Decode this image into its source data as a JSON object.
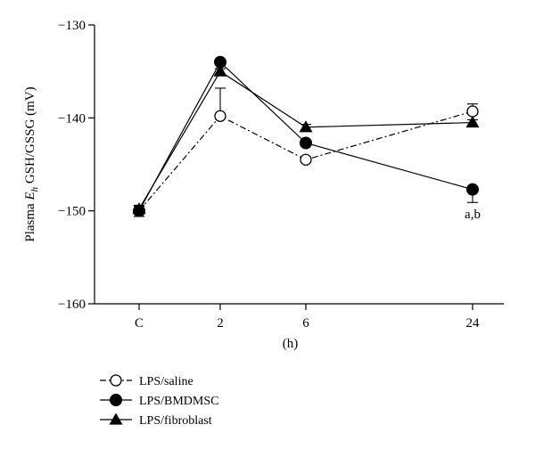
{
  "chart_data": {
    "type": "line",
    "categories": [
      "C",
      "2",
      "6",
      "24"
    ],
    "xlabel": "(h)",
    "ylabel": {
      "prefix": "Plasma ",
      "italic": "E",
      "sub": "h",
      "suffix": " GSH/GSSG (mV)"
    },
    "ylim": [
      -160,
      -130
    ],
    "yticks": [
      -130,
      -140,
      -150,
      -160
    ],
    "ytick_labels": [
      "−130",
      "−140",
      "−150",
      "−160"
    ],
    "grid": false,
    "legend_position": "bottom-left",
    "series": [
      {
        "name": "LPS/saline",
        "marker": "open-circle",
        "line": "dash-dot",
        "values": [
          -150.0,
          -139.8,
          -144.5,
          -139.3
        ],
        "err_up": [
          0.6,
          3.0,
          0.3,
          0.8
        ],
        "err_down": [
          0.6,
          0.3,
          0.3,
          0.3
        ]
      },
      {
        "name": "LPS/BMDMSC",
        "marker": "filled-circle",
        "line": "solid",
        "values": [
          -150.0,
          -134.0,
          -142.7,
          -147.7
        ],
        "err_up": [
          0.3,
          0.3,
          0.3,
          0.3
        ],
        "err_down": [
          0.6,
          0.3,
          0.3,
          1.4
        ]
      },
      {
        "name": "LPS/fibroblast",
        "marker": "filled-triangle",
        "line": "solid",
        "values": [
          -149.8,
          -135.0,
          -141.0,
          -140.5
        ],
        "err_up": [
          0.3,
          0.3,
          0.3,
          0.3
        ],
        "err_down": [
          0.3,
          0.3,
          0.3,
          0.3
        ]
      }
    ],
    "annotations": [
      {
        "text": "a,b",
        "category": "24",
        "y": -150.3
      }
    ]
  }
}
